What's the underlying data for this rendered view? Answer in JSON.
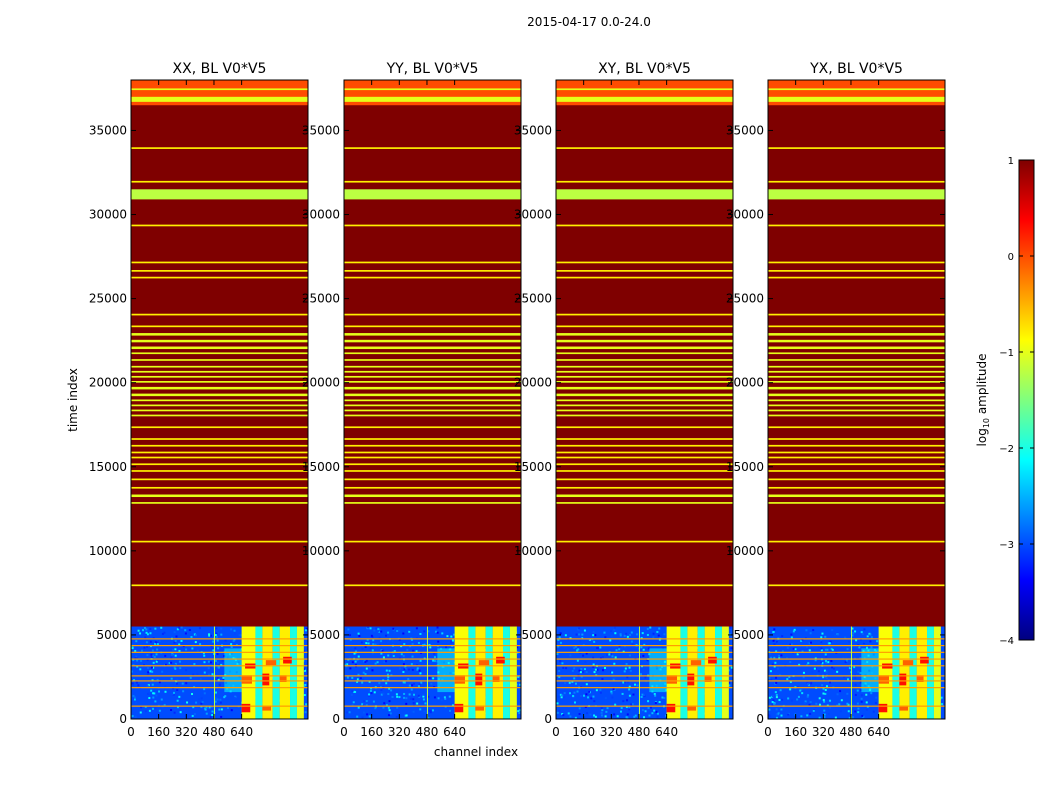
{
  "figure_title": "2015-04-17 0.0-24.0",
  "chart_data": {
    "type": "heatmap",
    "suptitle": "2015-04-17 0.0-24.0",
    "xlabel": "channel index",
    "ylabel": "time index",
    "xlim": [
      0,
      1024
    ],
    "ylim": [
      0,
      38000
    ],
    "x_ticks": [
      0,
      160,
      320,
      480,
      640
    ],
    "x_tick_labels": [
      "0",
      "160",
      "320",
      "480",
      "640"
    ],
    "y_ticks": [
      0,
      5000,
      10000,
      15000,
      20000,
      25000,
      30000,
      35000
    ],
    "y_tick_labels": [
      "0",
      "5000",
      "10000",
      "15000",
      "20000",
      "25000",
      "30000",
      "35000"
    ],
    "panels": [
      {
        "title": "XX, BL V0*V5",
        "polarization": "XX"
      },
      {
        "title": "YY, BL V0*V5",
        "polarization": "YY"
      },
      {
        "title": "XY, BL V0*V5",
        "polarization": "XY"
      },
      {
        "title": "YX, BL V0*V5",
        "polarization": "YX"
      }
    ],
    "flagged_value": 1,
    "data_region": {
      "time_end": 5500,
      "background_log_amp": -3,
      "bright_channel_range": [
        640,
        1000
      ],
      "bright_log_amp": -1
    },
    "bands": [
      {
        "t0": 36700,
        "t1": 37000,
        "v": -1
      },
      {
        "t0": 37400,
        "t1": 37500,
        "v": -1
      },
      {
        "t0": 30900,
        "t1": 31500,
        "v": -1.2
      },
      {
        "t0": 33900,
        "t1": 34000,
        "v": -0.8
      },
      {
        "t0": 31900,
        "t1": 32000,
        "v": -0.8
      },
      {
        "t0": 29300,
        "t1": 29400,
        "v": -0.8
      },
      {
        "t0": 27100,
        "t1": 27200,
        "v": -0.8
      },
      {
        "t0": 26600,
        "t1": 26700,
        "v": -0.8
      },
      {
        "t0": 26200,
        "t1": 26300,
        "v": -0.8
      },
      {
        "t0": 24000,
        "t1": 24100,
        "v": -0.8
      },
      {
        "t0": 23300,
        "t1": 23400,
        "v": -0.8
      },
      {
        "t0": 22800,
        "t1": 22950,
        "v": -1
      },
      {
        "t0": 22400,
        "t1": 22550,
        "v": -1
      },
      {
        "t0": 22000,
        "t1": 22150,
        "v": -1
      },
      {
        "t0": 21700,
        "t1": 21800,
        "v": -1
      },
      {
        "t0": 21300,
        "t1": 21400,
        "v": -1
      },
      {
        "t0": 20900,
        "t1": 21000,
        "v": -1
      },
      {
        "t0": 20600,
        "t1": 20700,
        "v": -1
      },
      {
        "t0": 20300,
        "t1": 20400,
        "v": -1
      },
      {
        "t0": 20000,
        "t1": 20100,
        "v": -1
      },
      {
        "t0": 19600,
        "t1": 19750,
        "v": -1
      },
      {
        "t0": 19200,
        "t1": 19350,
        "v": -1
      },
      {
        "t0": 18900,
        "t1": 19000,
        "v": -1
      },
      {
        "t0": 18600,
        "t1": 18700,
        "v": -1
      },
      {
        "t0": 18300,
        "t1": 18400,
        "v": -1
      },
      {
        "t0": 18000,
        "t1": 18100,
        "v": -1
      },
      {
        "t0": 17300,
        "t1": 17400,
        "v": -0.8
      },
      {
        "t0": 16600,
        "t1": 16700,
        "v": -0.8
      },
      {
        "t0": 16200,
        "t1": 16300,
        "v": -0.8
      },
      {
        "t0": 15800,
        "t1": 15900,
        "v": -0.8
      },
      {
        "t0": 15500,
        "t1": 15600,
        "v": -0.8
      },
      {
        "t0": 15100,
        "t1": 15200,
        "v": -0.8
      },
      {
        "t0": 14700,
        "t1": 14800,
        "v": -0.8
      },
      {
        "t0": 14200,
        "t1": 14300,
        "v": -0.8
      },
      {
        "t0": 13700,
        "t1": 13800,
        "v": -0.8
      },
      {
        "t0": 13200,
        "t1": 13350,
        "v": -1
      },
      {
        "t0": 12800,
        "t1": 12900,
        "v": -1
      },
      {
        "t0": 10500,
        "t1": 10600,
        "v": -0.8
      },
      {
        "t0": 7900,
        "t1": 8000,
        "v": -0.8
      }
    ]
  },
  "colorbar": {
    "label": "log10 amplitude",
    "label_base": "log",
    "label_sub": "10",
    "label_rest": " amplitude",
    "vmin": -4,
    "vmax": 1,
    "ticks": [
      1,
      0,
      -1,
      -2,
      -3,
      -4
    ],
    "tick_labels": [
      "1",
      "0",
      "−1",
      "−2",
      "−3",
      "−4"
    ],
    "colormap": "jet",
    "colormap_stops": [
      "#00007f",
      "#0000ff",
      "#007fff",
      "#00ffff",
      "#7fff7f",
      "#ffff00",
      "#ff7f00",
      "#ff0000",
      "#7f0000"
    ]
  }
}
